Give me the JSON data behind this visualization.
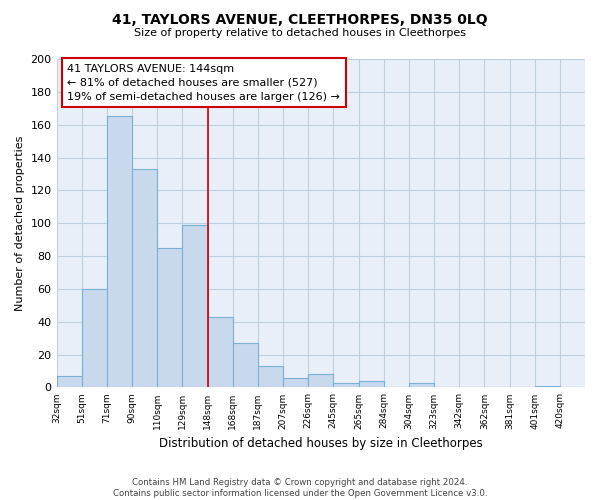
{
  "title": "41, TAYLORS AVENUE, CLEETHORPES, DN35 0LQ",
  "subtitle": "Size of property relative to detached houses in Cleethorpes",
  "xlabel": "Distribution of detached houses by size in Cleethorpes",
  "ylabel": "Number of detached properties",
  "bin_labels": [
    "32sqm",
    "51sqm",
    "71sqm",
    "90sqm",
    "110sqm",
    "129sqm",
    "148sqm",
    "168sqm",
    "187sqm",
    "207sqm",
    "226sqm",
    "245sqm",
    "265sqm",
    "284sqm",
    "304sqm",
    "323sqm",
    "342sqm",
    "362sqm",
    "381sqm",
    "401sqm",
    "420sqm"
  ],
  "bar_heights": [
    7,
    60,
    165,
    133,
    85,
    99,
    43,
    27,
    13,
    6,
    8,
    3,
    4,
    0,
    3,
    0,
    0,
    0,
    0,
    1,
    0
  ],
  "bar_color": "#c8d9ee",
  "bar_edge_color": "#7bafd4",
  "vline_x_index": 6,
  "vline_color": "#cc0000",
  "annotation_line1": "41 TAYLORS AVENUE: 144sqm",
  "annotation_line2": "← 81% of detached houses are smaller (527)",
  "annotation_line3": "19% of semi-detached houses are larger (126) →",
  "annotation_box_color": "#ffffff",
  "annotation_box_edge": "#cc0000",
  "ylim": [
    0,
    200
  ],
  "yticks": [
    0,
    20,
    40,
    60,
    80,
    100,
    120,
    140,
    160,
    180,
    200
  ],
  "footer_text": "Contains HM Land Registry data © Crown copyright and database right 2024.\nContains public sector information licensed under the Open Government Licence v3.0.",
  "background_color": "#ffffff",
  "grid_color": "#c0cfe0"
}
